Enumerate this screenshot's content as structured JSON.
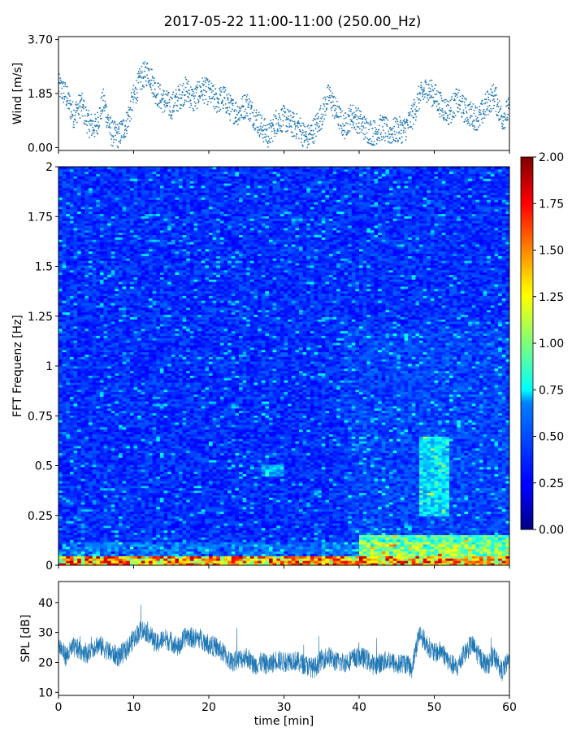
{
  "figure": {
    "title": "2017-05-22 11:00-11:00 (250.00_Hz)"
  },
  "chart_data": [
    {
      "id": "wind",
      "type": "scatter",
      "title": "",
      "xlabel": "",
      "ylabel": "Wind [m/s]",
      "xlim": [
        0,
        60
      ],
      "ylim": [
        -0.1,
        3.8
      ],
      "yticks": [
        0.0,
        1.85,
        3.7
      ],
      "ytick_labels": [
        "0.00",
        "1.85",
        "3.70"
      ],
      "color": "#1f77b4",
      "trend": {
        "x": [
          0,
          1,
          2,
          3,
          4,
          5,
          6,
          7,
          8,
          9,
          10,
          11,
          12,
          13,
          14,
          15,
          16,
          17,
          18,
          19,
          20,
          21,
          22,
          23,
          24,
          25,
          26,
          27,
          28,
          29,
          30,
          31,
          32,
          33,
          34,
          35,
          36,
          37,
          38,
          39,
          40,
          41,
          42,
          43,
          44,
          45,
          46,
          47,
          48,
          49,
          50,
          51,
          52,
          53,
          54,
          55,
          56,
          57,
          58,
          59,
          60
        ],
        "y": [
          2.1,
          1.8,
          1.1,
          1.5,
          0.8,
          0.7,
          1.6,
          0.5,
          0.4,
          0.8,
          1.7,
          2.4,
          2.6,
          1.9,
          1.6,
          1.4,
          1.7,
          2.0,
          1.6,
          2.0,
          1.9,
          1.6,
          1.7,
          1.3,
          1.2,
          1.5,
          1.1,
          0.7,
          0.4,
          0.9,
          1.0,
          0.8,
          0.7,
          0.3,
          0.6,
          1.1,
          1.8,
          1.2,
          0.7,
          1.1,
          0.9,
          0.6,
          0.5,
          0.7,
          0.5,
          0.6,
          0.6,
          1.0,
          1.7,
          2.0,
          1.8,
          1.4,
          1.2,
          1.6,
          1.3,
          1.1,
          1.0,
          1.5,
          1.8,
          1.0,
          1.3
        ]
      }
    },
    {
      "id": "spectrogram",
      "type": "heatmap",
      "title": "",
      "xlabel": "",
      "ylabel": "FFT Frequenz [Hz]",
      "xlim": [
        0,
        60
      ],
      "ylim": [
        0,
        2
      ],
      "yticks": [
        0,
        0.25,
        0.5,
        0.75,
        1,
        1.25,
        1.5,
        1.75,
        2
      ],
      "ytick_labels": [
        "0",
        "0.25",
        "0.5",
        "0.75",
        "1",
        "1.25",
        "1.5",
        "1.75",
        "2"
      ],
      "colormap": "jet",
      "colorbar": {
        "vmin": 0.0,
        "vmax": 2.0,
        "ticks": [
          0.0,
          0.25,
          0.5,
          0.75,
          1.0,
          1.25,
          1.5,
          1.75,
          2.0
        ],
        "tick_labels": [
          "0.00",
          "0.25",
          "0.50",
          "0.75",
          "1.00",
          "1.25",
          "1.50",
          "1.75",
          "2.00"
        ]
      },
      "features": [
        {
          "t": [
            0,
            60
          ],
          "f": [
            0,
            0.05
          ],
          "level": 1.5
        },
        {
          "t": [
            27,
            30
          ],
          "f": [
            0.45,
            0.5
          ],
          "level": 0.6
        },
        {
          "t": [
            48,
            52
          ],
          "f": [
            0.25,
            0.65
          ],
          "level": 0.7
        },
        {
          "t": [
            40,
            60
          ],
          "f": [
            0.05,
            0.15
          ],
          "level": 1.0
        }
      ]
    },
    {
      "id": "spl",
      "type": "line",
      "title": "",
      "xlabel": "time [min]",
      "ylabel": "SPL [dB]",
      "xlim": [
        0,
        60
      ],
      "ylim": [
        9,
        47
      ],
      "xticks": [
        0,
        10,
        20,
        30,
        40,
        50,
        60
      ],
      "xtick_labels": [
        "0",
        "10",
        "20",
        "30",
        "40",
        "50",
        "60"
      ],
      "yticks": [
        10,
        20,
        30,
        40
      ],
      "ytick_labels": [
        "10",
        "20",
        "30",
        "40"
      ],
      "color": "#1f77b4",
      "series": [
        {
          "x": [
            0,
            1,
            2,
            3,
            4,
            5,
            6,
            7,
            8,
            9,
            10,
            11,
            12,
            13,
            14,
            15,
            16,
            17,
            18,
            19,
            20,
            21,
            22,
            23,
            24,
            25,
            26,
            27,
            28,
            29,
            30,
            31,
            32,
            33,
            34,
            35,
            36,
            37,
            38,
            39,
            40,
            41,
            42,
            43,
            44,
            45,
            46,
            47,
            48,
            49,
            50,
            51,
            52,
            53,
            54,
            55,
            56,
            57,
            58,
            59,
            60
          ],
          "y": [
            26,
            22,
            25,
            24,
            23,
            26,
            25,
            23,
            22,
            24,
            28,
            31,
            30,
            26,
            28,
            27,
            25,
            29,
            28,
            28,
            26,
            25,
            23,
            20,
            21,
            22,
            19,
            20,
            19,
            21,
            20,
            21,
            20,
            19,
            18,
            21,
            22,
            20,
            20,
            21,
            22,
            21,
            19,
            20,
            21,
            19,
            20,
            18,
            30,
            26,
            23,
            24,
            20,
            18,
            23,
            26,
            22,
            19,
            22,
            17,
            21
          ]
        }
      ]
    }
  ]
}
